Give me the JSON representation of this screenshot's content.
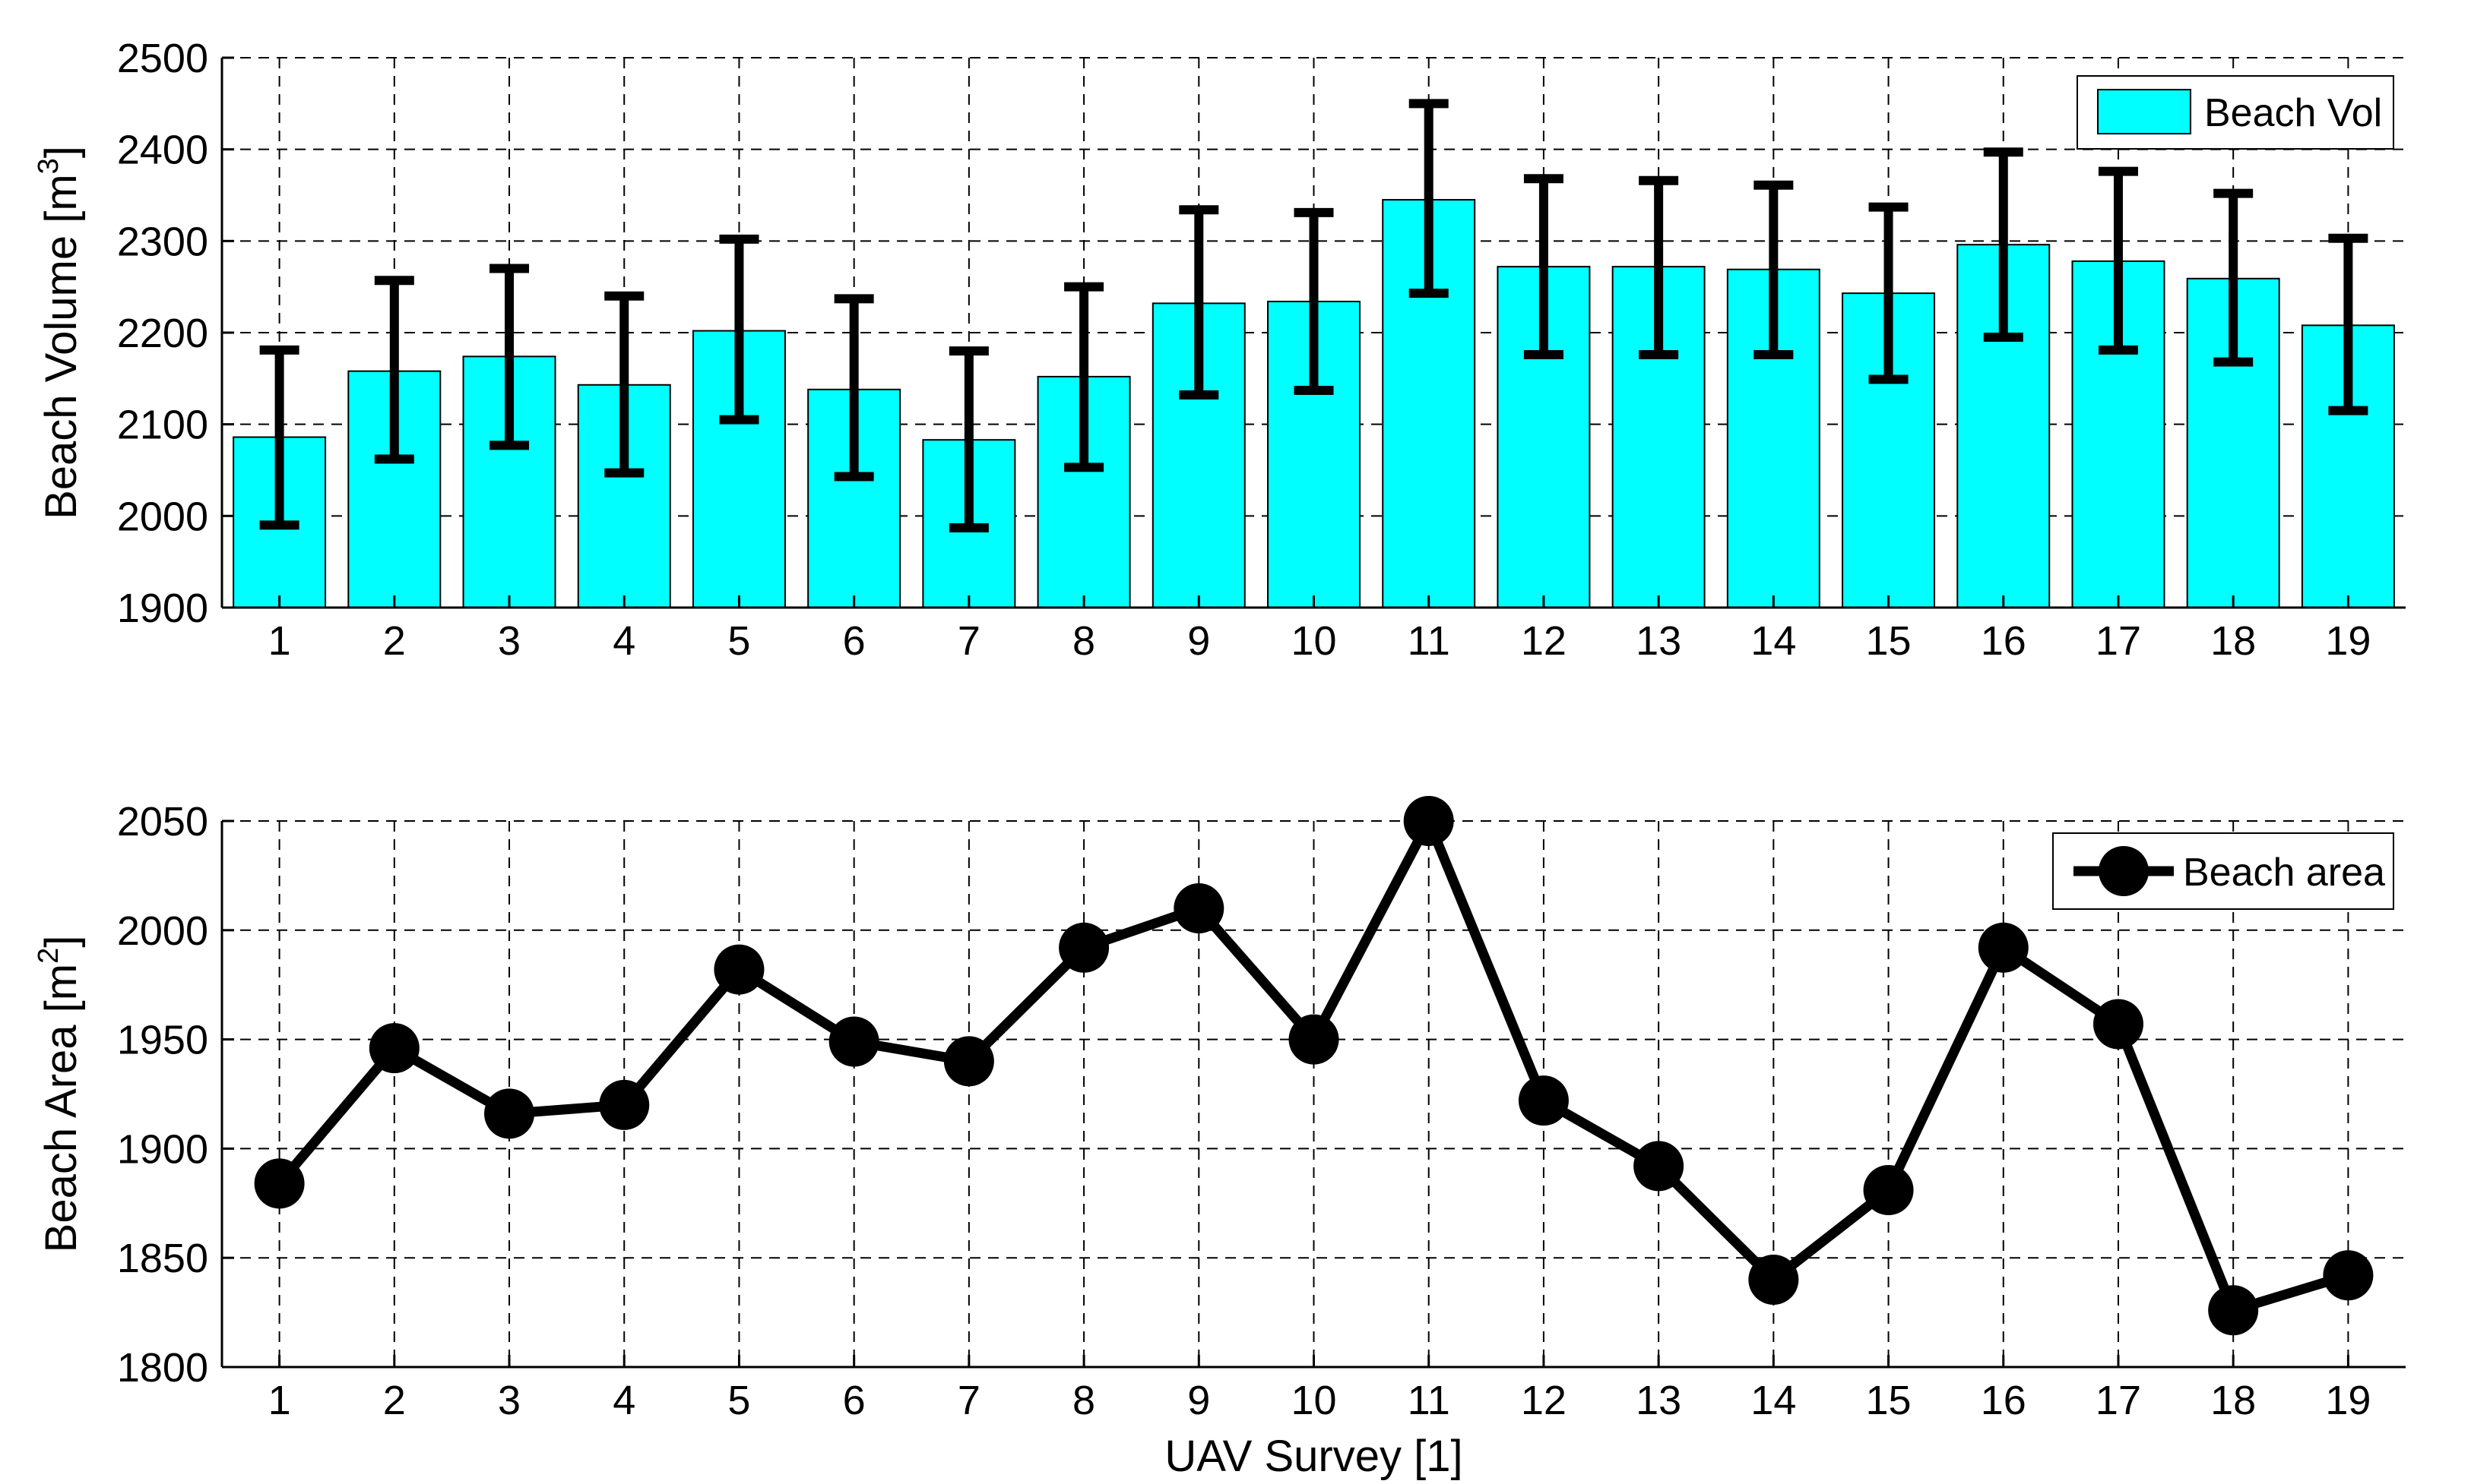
{
  "chart_data": [
    {
      "type": "bar",
      "categories": [
        "1",
        "2",
        "3",
        "4",
        "5",
        "6",
        "7",
        "8",
        "9",
        "10",
        "11",
        "12",
        "13",
        "14",
        "15",
        "16",
        "17",
        "18",
        "19"
      ],
      "series": [
        {
          "name": "Beach Vol",
          "values": [
            2086,
            2158,
            2174,
            2143,
            2202,
            2138,
            2083,
            2152,
            2232,
            2234,
            2345,
            2272,
            2272,
            2269,
            2243,
            2296,
            2278,
            2259,
            2208
          ],
          "error_lower": [
            1990,
            2062,
            2077,
            2047,
            2105,
            2043,
            1987,
            2053,
            2132,
            2137,
            2243,
            2176,
            2176,
            2176,
            2149,
            2195,
            2181,
            2168,
            2115
          ],
          "error_upper": [
            2181,
            2257,
            2270,
            2240,
            2302,
            2237,
            2180,
            2250,
            2334,
            2331,
            2450,
            2368,
            2366,
            2361,
            2337,
            2397,
            2376,
            2352,
            2303
          ],
          "color": "#00ffff"
        }
      ],
      "title": "",
      "xlabel": "",
      "ylabel": "Beach Volume [m",
      "ylabel_superscript": "3",
      "ylabel_close": "]",
      "ylim": [
        1900,
        2500
      ],
      "yticks": [
        1900,
        2000,
        2100,
        2200,
        2300,
        2400,
        2500
      ],
      "grid": true,
      "legend": {
        "label": "Beach Vol",
        "placement": "top-right"
      }
    },
    {
      "type": "line",
      "x": [
        1,
        2,
        3,
        4,
        5,
        6,
        7,
        8,
        9,
        10,
        11,
        12,
        13,
        14,
        15,
        16,
        17,
        18,
        19
      ],
      "xticklabels": [
        "1",
        "2",
        "3",
        "4",
        "5",
        "6",
        "7",
        "8",
        "9",
        "10",
        "11",
        "12",
        "13",
        "14",
        "15",
        "16",
        "17",
        "18",
        "19"
      ],
      "series": [
        {
          "name": "Beach area",
          "values": [
            1884,
            1946,
            1916,
            1920,
            1982,
            1949,
            1940,
            1992,
            2010,
            1950,
            2050,
            1922,
            1892,
            1840,
            1881,
            1992,
            1957,
            1826,
            1842
          ],
          "color": "#000000",
          "marker": "circle"
        }
      ],
      "title": "",
      "xlabel": "UAV Survey [1]",
      "ylabel": "Beach Area [m",
      "ylabel_superscript": "2",
      "ylabel_close": "]",
      "ylim": [
        1800,
        2050
      ],
      "yticks": [
        1800,
        1850,
        1900,
        1950,
        2000,
        2050
      ],
      "grid": true,
      "legend": {
        "label": "Beach area",
        "placement": "top-right"
      }
    }
  ]
}
